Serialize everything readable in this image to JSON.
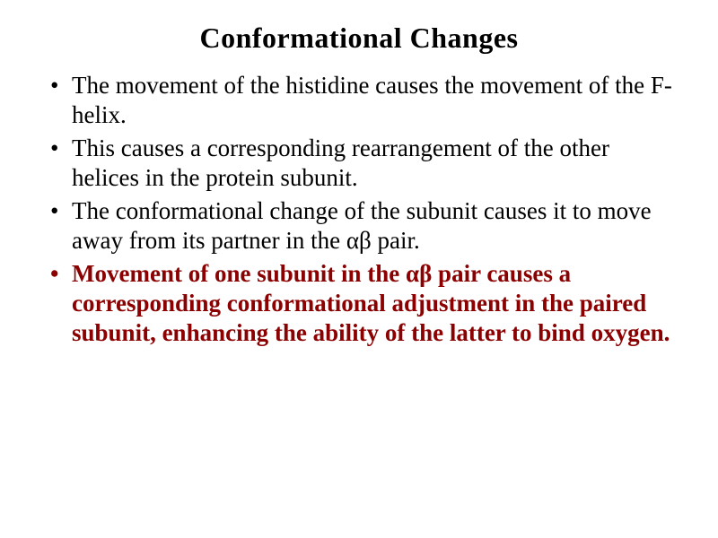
{
  "slide": {
    "title": "Conformational Changes",
    "title_fontsize": 32,
    "body_fontsize": 27,
    "bg_color": "#ffffff",
    "text_color": "#000000",
    "highlight_color": "#8b0000",
    "bullets": [
      {
        "text": "The movement of the histidine causes the movement of the F-helix.",
        "style": "black"
      },
      {
        "text": "This causes a corresponding rearrangement of the other helices in the protein subunit.",
        "style": "black"
      },
      {
        "text": "The conformational change of the subunit causes it to move away from its partner in the αβ pair.",
        "style": "black"
      },
      {
        "text": "Movement of one subunit in the αβ pair causes a corresponding conformational adjustment in the paired subunit, enhancing the ability of the latter to bind oxygen.",
        "style": "red"
      }
    ]
  }
}
